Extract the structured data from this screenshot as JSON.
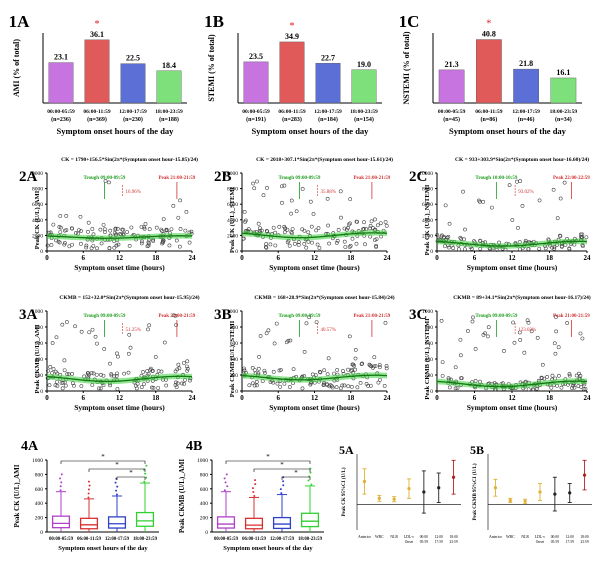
{
  "chart_data": [
    {
      "id": "1A",
      "type": "bar",
      "ylabel": "AMI (% of total)",
      "xlabel": "Symptom onset hours of the day",
      "categories": [
        "00:00-05:59",
        "06:00-11:59",
        "12:00-17:59",
        "18:00-23:59"
      ],
      "category_n": [
        "(n=236)",
        "(n=369)",
        "(n=230)",
        "(n=188)"
      ],
      "values": [
        23.1,
        36.1,
        22.5,
        18.4
      ],
      "value_labels": [
        "23.1",
        "36.1",
        "22.5",
        "18.4"
      ],
      "star_index": 1,
      "star": "*",
      "colors": [
        "#c774e0",
        "#e05a5a",
        "#5b6fd6",
        "#7ee07a"
      ],
      "ylim": [
        0,
        40
      ]
    },
    {
      "id": "1B",
      "type": "bar",
      "ylabel": "STEMI (% of total)",
      "xlabel": "Symptom onset hours of the day",
      "categories": [
        "00:00-05:59",
        "06:00-11:59",
        "12:00-17:59",
        "18:00-23:59"
      ],
      "category_n": [
        "(n=191)",
        "(n=283)",
        "(n=184)",
        "(n=154)"
      ],
      "values": [
        23.5,
        34.9,
        22.7,
        19.0
      ],
      "value_labels": [
        "23.5",
        "34.9",
        "22.7",
        "19.0"
      ],
      "star_index": 1,
      "star": "*",
      "colors": [
        "#c774e0",
        "#e05a5a",
        "#5b6fd6",
        "#7ee07a"
      ],
      "ylim": [
        0,
        40
      ]
    },
    {
      "id": "1C",
      "type": "bar",
      "ylabel": "NSTEMI (% of total)",
      "xlabel": "Symptom onset hours of the day",
      "categories": [
        "00:00-05:59",
        "06:00-11:59",
        "12:00-17:59",
        "18:00-23:59"
      ],
      "category_n": [
        "(n=45)",
        "(n=86)",
        "(n=46)",
        "(n=34)"
      ],
      "values": [
        21.3,
        40.8,
        21.8,
        16.1
      ],
      "value_labels": [
        "21.3",
        "40.8",
        "21.8",
        "16.1"
      ],
      "star_index": 1,
      "star": "*",
      "colors": [
        "#c774e0",
        "#e05a5a",
        "#5b6fd6",
        "#7ee07a"
      ],
      "ylim": [
        0,
        45
      ]
    },
    {
      "id": "2A",
      "type": "scatter",
      "title": "CK = 1790+156.5*Sin(2π*(Symptom onset hour-15.85)/24)",
      "ylabel": "Peak CK (U/L)_AMI",
      "xlabel": "Symptom onset time (hours)",
      "xticks": [
        0,
        6,
        12,
        18,
        24
      ],
      "yticks": [
        0,
        2000,
        4000,
        6000,
        8000,
        10000
      ],
      "xlim": [
        0,
        24
      ],
      "ylim": [
        0,
        10000
      ],
      "fit": {
        "mesor": 1790,
        "amplitude": 156.5,
        "phase": 15.85,
        "period": 24
      },
      "annotations": {
        "trough": "Trough 09:00-09:59",
        "peak": "Peak 21:00-21:59",
        "change": "16.96%"
      }
    },
    {
      "id": "2B",
      "type": "scatter",
      "title": "CK = 2018+307.1*Sin(2π*(Symptom onset hour-15.61)/24)",
      "ylabel": "Peak CK (U/L)_STEMI",
      "xlabel": "Symptom onset time (hours)",
      "xticks": [
        0,
        6,
        12,
        18,
        24
      ],
      "yticks": [
        0,
        2000,
        4000,
        6000,
        8000,
        10000
      ],
      "xlim": [
        0,
        24
      ],
      "ylim": [
        0,
        10000
      ],
      "fit": {
        "mesor": 2018,
        "amplitude": 307.1,
        "phase": 15.61,
        "period": 24
      },
      "annotations": {
        "trough": "Trough 09:00-09:59",
        "peak": "Peak 21:00-21:59",
        "change": "35.88%"
      }
    },
    {
      "id": "2C",
      "type": "scatter",
      "title": "CK = 933+303.9*Sin(2π*(Symptom onset hour-16.60)/24)",
      "ylabel": "Peak CK (U/L)_NSTEMI",
      "xlabel": "Symptom onset time (hours)",
      "xticks": [
        0,
        6,
        12,
        18,
        24
      ],
      "yticks": [
        0,
        2000,
        4000,
        6000,
        8000,
        10000
      ],
      "xlim": [
        0,
        24
      ],
      "ylim": [
        0,
        10000
      ],
      "fit": {
        "mesor": 933,
        "amplitude": 303.9,
        "phase": 16.6,
        "period": 24
      },
      "annotations": {
        "trough": "Trough 10:00-10:59",
        "peak": "Peak 22:00-22:59",
        "change": "93.02%"
      }
    },
    {
      "id": "3A",
      "type": "scatter",
      "title": "CKMB = 152+32.0*Sin(2π*(Symptom onset hour-15.95)/24)",
      "ylabel": "Peak CKMB (U/L)_AMI",
      "xlabel": "Symptom onset time (hours)",
      "xticks": [
        0,
        6,
        12,
        18,
        24
      ],
      "yticks": [
        0,
        200,
        400,
        600,
        800,
        1000
      ],
      "xlim": [
        0,
        24
      ],
      "ylim": [
        0,
        1000
      ],
      "fit": {
        "mesor": 152,
        "amplitude": 32.0,
        "phase": 15.95,
        "period": 24
      },
      "annotations": {
        "trough": "Trough 09:00-09:59",
        "peak": "Peak 21:00-21:59",
        "change": "51.25%"
      }
    },
    {
      "id": "3B",
      "type": "scatter",
      "title": "CKMB = 168+28.9*Sin(2π*(Symptom onset hour-15.84)/24)",
      "ylabel": "Peak CKMB (U/L)_STEMI",
      "xlabel": "Symptom onset time (hours)",
      "xticks": [
        0,
        6,
        12,
        18,
        24
      ],
      "yticks": [
        0,
        200,
        400,
        600,
        800,
        1000
      ],
      "xlim": [
        0,
        24
      ],
      "ylim": [
        0,
        1000
      ],
      "fit": {
        "mesor": 168,
        "amplitude": 28.9,
        "phase": 15.84,
        "period": 24
      },
      "annotations": {
        "trough": "Trough 09:00-09:59",
        "peak": "Peak 21:00-21:59",
        "change": "40.57%"
      }
    },
    {
      "id": "3C",
      "type": "scatter",
      "title": "CKMB = 89+34.1*Sin(2π*(Symptom onset hour-16.17)/24)",
      "ylabel": "Peak CKMB (U/L)_NSTEMI",
      "xlabel": "Symptom onset time (hours)",
      "xticks": [
        0,
        6,
        12,
        18,
        24
      ],
      "yticks": [
        0,
        200,
        400,
        600,
        800,
        1000
      ],
      "xlim": [
        0,
        24
      ],
      "ylim": [
        0,
        1000
      ],
      "fit": {
        "mesor": 89,
        "amplitude": 34.1,
        "phase": 16.17,
        "period": 24
      },
      "annotations": {
        "trough": "Trough 09:00-09:59",
        "peak": "Peak 21:00-21:59",
        "change": "123.03%"
      }
    },
    {
      "id": "4A",
      "type": "box",
      "ylabel": "Peak CK (U/L)_AMI",
      "xlabel": "Symptom onset hours of the day",
      "categories": [
        "00:00-05:59",
        "06:00-11:59",
        "12:00-17:59",
        "18:00-23:59"
      ],
      "yticks": [
        0,
        200,
        400,
        600,
        800,
        1000
      ],
      "ylim": [
        0,
        1000
      ],
      "boxes": [
        {
          "whisker_low": 0,
          "q1": 60,
          "median": 120,
          "q3": 220,
          "whisker_high": 560
        },
        {
          "whisker_low": 0,
          "q1": 45,
          "median": 100,
          "q3": 190,
          "whisker_high": 460
        },
        {
          "whisker_low": 0,
          "q1": 55,
          "median": 115,
          "q3": 210,
          "whisker_high": 500
        },
        {
          "whisker_low": 0,
          "q1": 80,
          "median": 155,
          "q3": 270,
          "whisker_high": 680
        }
      ],
      "colors": [
        "#b040c8",
        "#d83030",
        "#3040c8",
        "#30d030"
      ],
      "sig_marks": [
        "*",
        "*",
        "*"
      ]
    },
    {
      "id": "4B",
      "type": "box",
      "ylabel": "Peak CKMB (U/L)_AMI",
      "xlabel": "Symptom onset hours of the day",
      "categories": [
        "00:00-05:59",
        "06:00-11:59",
        "12:00-17:59",
        "18:00-23:59"
      ],
      "yticks": [
        0,
        200,
        400,
        600,
        800,
        1000
      ],
      "ylim": [
        0,
        1000
      ],
      "boxes": [
        {
          "whisker_low": 0,
          "q1": 55,
          "median": 110,
          "q3": 210,
          "whisker_high": 560
        },
        {
          "whisker_low": 0,
          "q1": 45,
          "median": 95,
          "q3": 190,
          "whisker_high": 480
        },
        {
          "whisker_low": 0,
          "q1": 50,
          "median": 110,
          "q3": 200,
          "whisker_high": 520
        },
        {
          "whisker_low": 0,
          "q1": 75,
          "median": 150,
          "q3": 260,
          "whisker_high": 640
        }
      ],
      "colors": [
        "#b040c8",
        "#d83030",
        "#3040c8",
        "#30d030"
      ],
      "sig_marks": [
        "*",
        "*",
        "*"
      ]
    },
    {
      "id": "5A",
      "type": "errorbar",
      "ylabel": "Peak CK 95%CI (U/L)",
      "categories": [
        "Anterior",
        "WBC",
        "NLR",
        "LDL-c",
        "00:00-05:59",
        "12:00-17:59",
        "18:00-23:59"
      ],
      "extra_label": "Onset",
      "means": [
        550,
        150,
        130,
        380,
        300,
        400,
        650
      ],
      "lower": [
        250,
        80,
        70,
        150,
        -200,
        50,
        250
      ],
      "upper": [
        850,
        220,
        190,
        610,
        800,
        750,
        1050
      ],
      "colors": [
        "#e0b030",
        "#e0b030",
        "#e0b030",
        "#e0b030",
        "#222222",
        "#222222",
        "#b02020"
      ],
      "ylim": [
        -600,
        1200
      ]
    },
    {
      "id": "5B",
      "type": "errorbar",
      "ylabel": "Peak CKMB 95%CI (U/L)",
      "categories": [
        "Anterior",
        "WBC",
        "NLR",
        "LDL-c",
        "00:00-05:59",
        "12:00-17:59",
        "18:00-23:59"
      ],
      "extra_label": "Onset",
      "means": [
        40,
        10,
        8,
        30,
        25,
        28,
        70
      ],
      "lower": [
        20,
        5,
        3,
        10,
        -15,
        5,
        35
      ],
      "upper": [
        60,
        15,
        13,
        50,
        65,
        50,
        105
      ],
      "colors": [
        "#e0b030",
        "#e0b030",
        "#e0b030",
        "#e0b030",
        "#222222",
        "#222222",
        "#b02020"
      ],
      "ylim": [
        -60,
        120
      ]
    }
  ]
}
